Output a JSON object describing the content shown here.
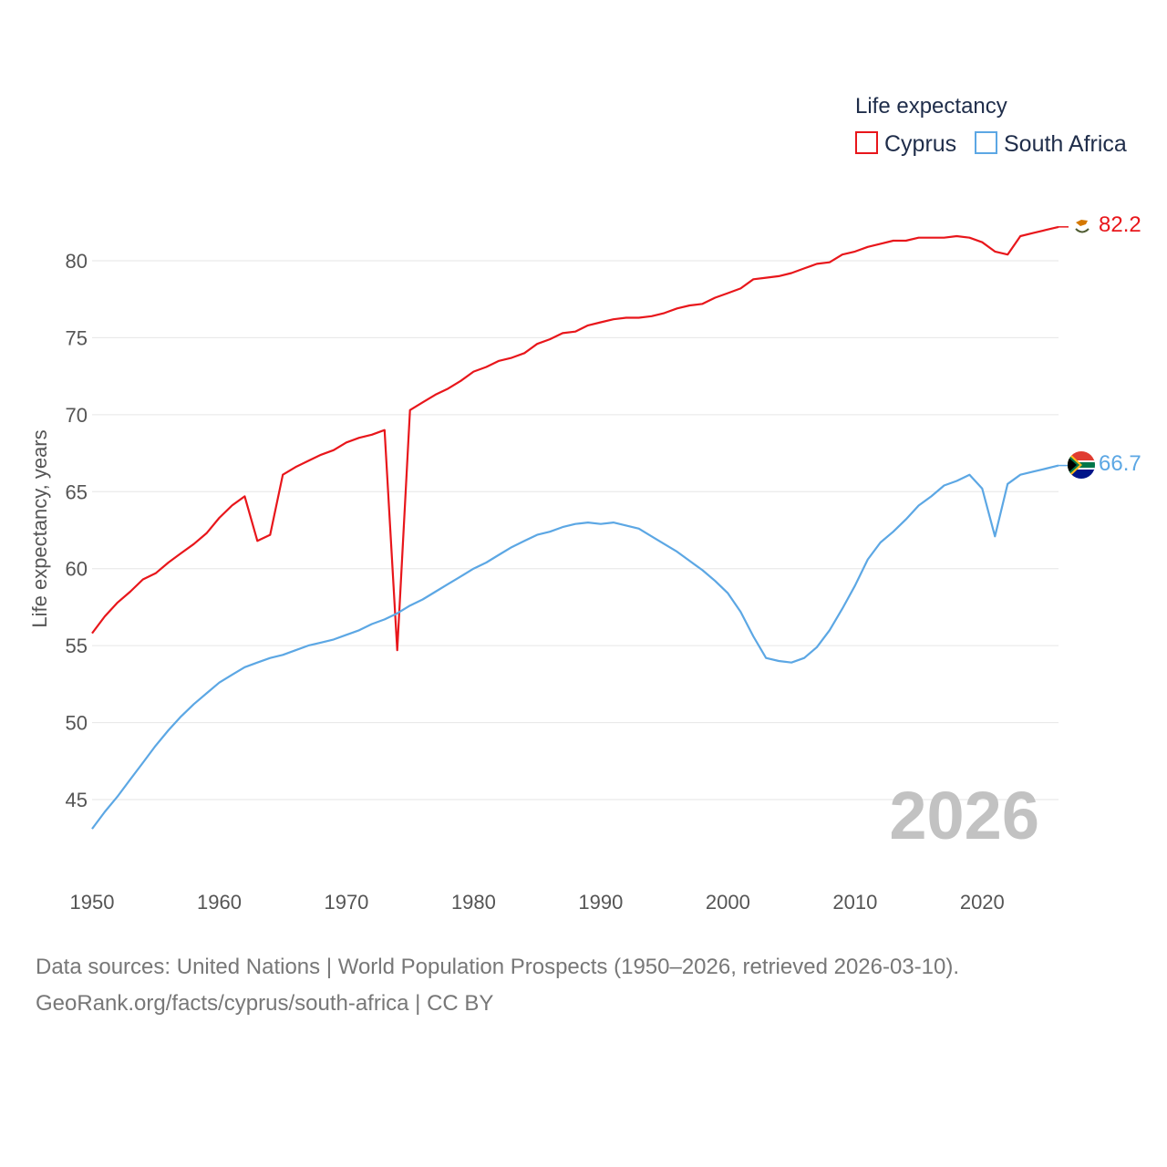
{
  "chart_data": {
    "type": "line",
    "title": "",
    "xlabel": "",
    "ylabel": "Life expectancy, years",
    "xlim": [
      1950,
      2026
    ],
    "ylim": [
      42,
      83
    ],
    "x_ticks": [
      "1950",
      "1960",
      "1970",
      "1980",
      "1990",
      "2000",
      "2010",
      "2020"
    ],
    "y_ticks": [
      "45",
      "50",
      "55",
      "60",
      "65",
      "70",
      "75",
      "80"
    ],
    "grid": true,
    "legend_title": "Life expectancy",
    "legend_position": "top-right",
    "current_year": "2026",
    "series": [
      {
        "name": "Cyprus",
        "color": "#e8161b",
        "end_label": "82.2",
        "flag": "cyprus-flag",
        "x": [
          1950,
          1951,
          1952,
          1953,
          1954,
          1955,
          1956,
          1957,
          1958,
          1959,
          1960,
          1961,
          1962,
          1963,
          1964,
          1965,
          1966,
          1967,
          1968,
          1969,
          1970,
          1971,
          1972,
          1973,
          1974,
          1975,
          1976,
          1977,
          1978,
          1979,
          1980,
          1981,
          1982,
          1983,
          1984,
          1985,
          1986,
          1987,
          1988,
          1989,
          1990,
          1991,
          1992,
          1993,
          1994,
          1995,
          1996,
          1997,
          1998,
          1999,
          2000,
          2001,
          2002,
          2003,
          2004,
          2005,
          2006,
          2007,
          2008,
          2009,
          2010,
          2011,
          2012,
          2013,
          2014,
          2015,
          2016,
          2017,
          2018,
          2019,
          2020,
          2021,
          2022,
          2023,
          2024,
          2025,
          2026
        ],
        "values": [
          55.8,
          56.9,
          57.8,
          58.5,
          59.3,
          59.7,
          60.4,
          61.0,
          61.6,
          62.3,
          63.3,
          64.1,
          64.7,
          61.8,
          62.2,
          66.1,
          66.6,
          67.0,
          67.4,
          67.7,
          68.2,
          68.5,
          68.7,
          69.0,
          54.7,
          70.3,
          70.8,
          71.3,
          71.7,
          72.2,
          72.8,
          73.1,
          73.5,
          73.7,
          74.0,
          74.6,
          74.9,
          75.3,
          75.4,
          75.8,
          76.0,
          76.2,
          76.3,
          76.3,
          76.4,
          76.6,
          76.9,
          77.1,
          77.2,
          77.6,
          77.9,
          78.2,
          78.8,
          78.9,
          79.0,
          79.2,
          79.5,
          79.8,
          79.9,
          80.4,
          80.6,
          80.9,
          81.1,
          81.3,
          81.3,
          81.5,
          81.5,
          81.5,
          81.6,
          81.5,
          81.2,
          80.6,
          80.4,
          81.6,
          81.8,
          82.0,
          82.2
        ]
      },
      {
        "name": "South Africa",
        "color": "#5ca7e4",
        "end_label": "66.7",
        "flag": "south-africa-flag",
        "x": [
          1950,
          1951,
          1952,
          1953,
          1954,
          1955,
          1956,
          1957,
          1958,
          1959,
          1960,
          1961,
          1962,
          1963,
          1964,
          1965,
          1966,
          1967,
          1968,
          1969,
          1970,
          1971,
          1972,
          1973,
          1974,
          1975,
          1976,
          1977,
          1978,
          1979,
          1980,
          1981,
          1982,
          1983,
          1984,
          1985,
          1986,
          1987,
          1988,
          1989,
          1990,
          1991,
          1992,
          1993,
          1994,
          1995,
          1996,
          1997,
          1998,
          1999,
          2000,
          2001,
          2002,
          2003,
          2004,
          2005,
          2006,
          2007,
          2008,
          2009,
          2010,
          2011,
          2012,
          2013,
          2014,
          2015,
          2016,
          2017,
          2018,
          2019,
          2020,
          2021,
          2022,
          2023,
          2024,
          2025,
          2026
        ],
        "values": [
          43.1,
          44.2,
          45.2,
          46.3,
          47.4,
          48.5,
          49.5,
          50.4,
          51.2,
          51.9,
          52.6,
          53.1,
          53.6,
          53.9,
          54.2,
          54.4,
          54.7,
          55.0,
          55.2,
          55.4,
          55.7,
          56.0,
          56.4,
          56.7,
          57.1,
          57.6,
          58.0,
          58.5,
          59.0,
          59.5,
          60.0,
          60.4,
          60.9,
          61.4,
          61.8,
          62.2,
          62.4,
          62.7,
          62.9,
          63.0,
          62.9,
          63.0,
          62.8,
          62.6,
          62.1,
          61.6,
          61.1,
          60.5,
          59.9,
          59.2,
          58.4,
          57.2,
          55.6,
          54.2,
          54.0,
          53.9,
          54.2,
          54.9,
          56.0,
          57.4,
          58.9,
          60.6,
          61.7,
          62.4,
          63.2,
          64.1,
          64.7,
          65.4,
          65.7,
          66.1,
          65.2,
          62.1,
          65.5,
          66.1,
          66.3,
          66.5,
          66.7
        ]
      }
    ]
  },
  "footer": {
    "source_line1": "Data sources: United Nations | World Population Prospects (1950–2026, retrieved 2026-03-10).",
    "source_line2": "GeoRank.org/facts/cyprus/south-africa | CC BY"
  }
}
